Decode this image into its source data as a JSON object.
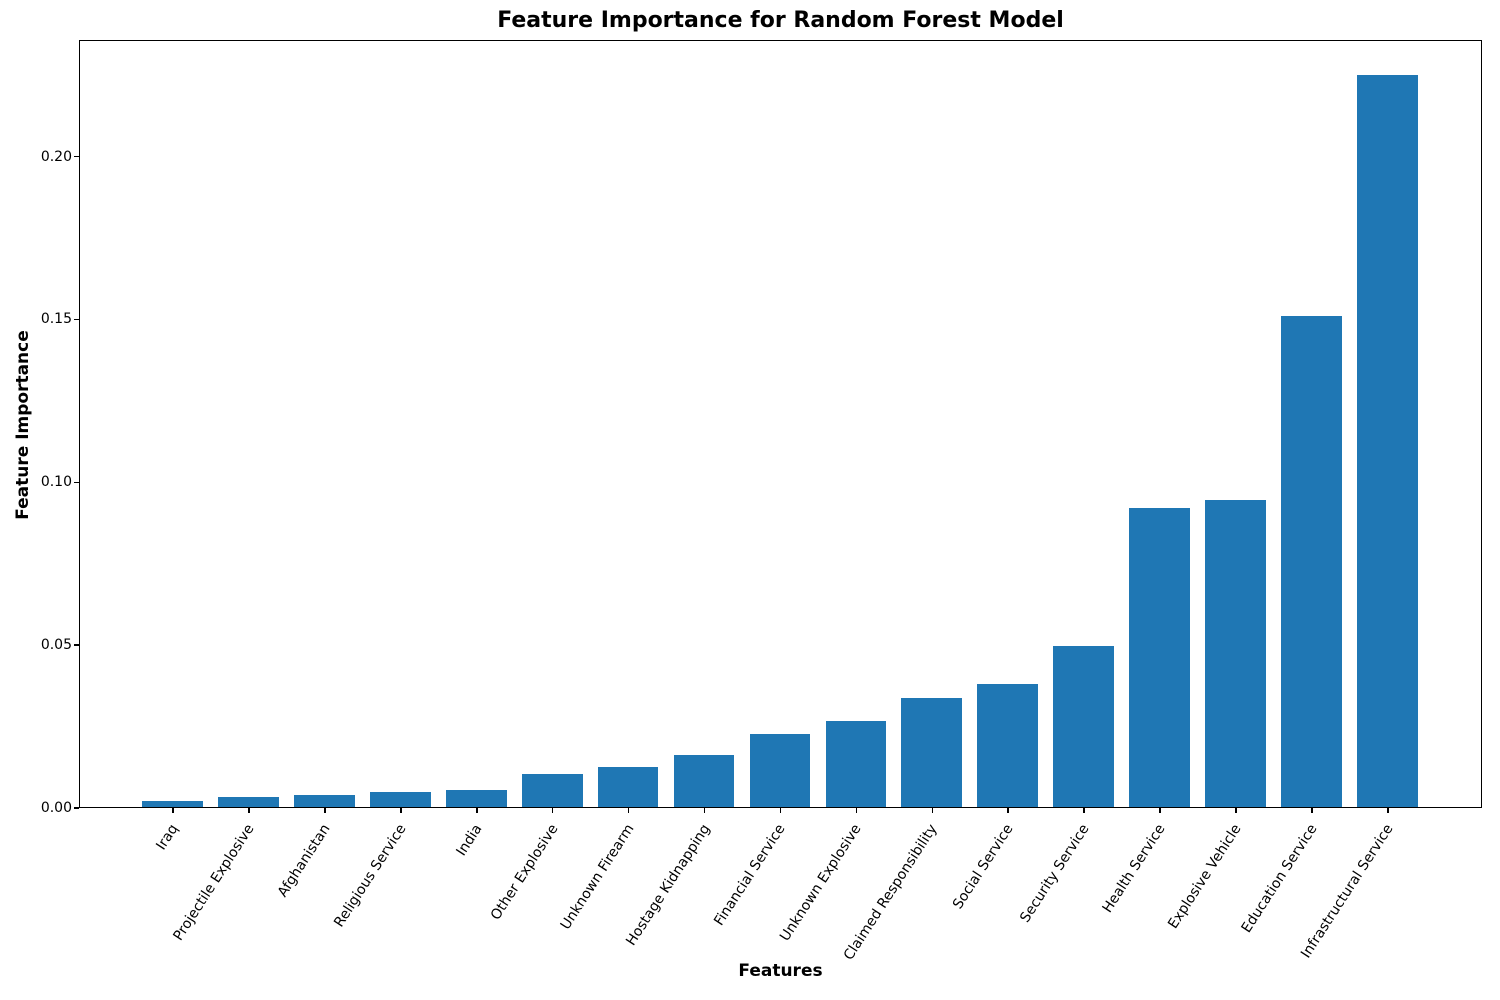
{
  "chart_data": {
    "type": "bar",
    "title": "Feature Importance for Random Forest Model",
    "xlabel": "Features",
    "ylabel": "Feature Importance",
    "categories": [
      "Iraq",
      "Projectile Explosive",
      "Afghanistan",
      "Religious Service",
      "India",
      "Other Explosive",
      "Unknown Firearm",
      "Hostage Kidnapping",
      "Financial Service",
      "Unknown Explosive",
      "Claimed Responsibility",
      "Social Service",
      "Security Service",
      "Health Service",
      "Explosive Vehicle",
      "Education Service",
      "Infrastructural Service"
    ],
    "values": [
      0.0018,
      0.0031,
      0.0038,
      0.0046,
      0.0052,
      0.0102,
      0.0122,
      0.016,
      0.0224,
      0.0264,
      0.0334,
      0.0378,
      0.0494,
      0.0917,
      0.0942,
      0.1507,
      0.2246
    ],
    "ylim": [
      0,
      0.2358
    ],
    "yticks": [
      0.0,
      0.05,
      0.1,
      0.15,
      0.2
    ],
    "ytick_labels": [
      "0.00",
      "0.05",
      "0.10",
      "0.15",
      "0.20"
    ],
    "bar_color": "#1f77b4",
    "axis_color": "#000000",
    "grid": false,
    "legend": null,
    "x_tick_rotation_deg": 57
  }
}
